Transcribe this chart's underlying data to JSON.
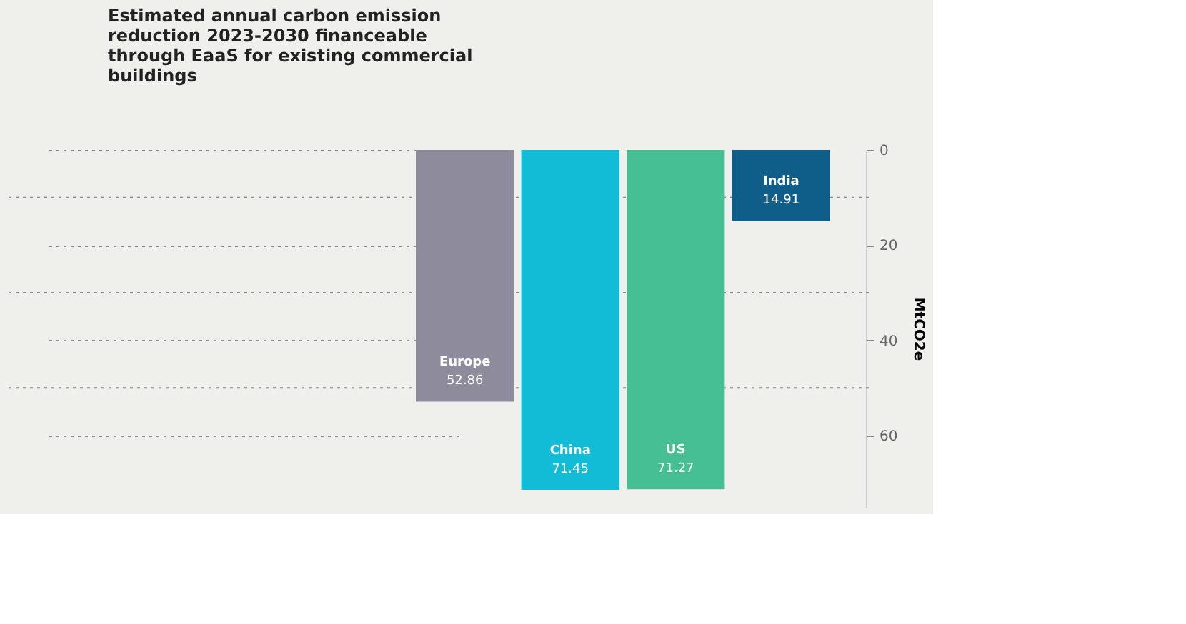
{
  "chart_data": {
    "type": "bar",
    "title": "Estimated annual carbon emission reduction 2023-2030 financeable through EaaS for existing commercial buildings",
    "categories": [
      "Europe",
      "China",
      "US",
      "India"
    ],
    "values": [
      52.86,
      71.45,
      71.27,
      14.91
    ],
    "colors": [
      "#8e8c9c",
      "#12bcd6",
      "#45bf93",
      "#0f5e8a"
    ],
    "ylabel": "MtCO2e",
    "ylim": [
      75,
      0
    ],
    "yticks": [
      0,
      {
        "value": 10,
        "label": null
      },
      20,
      {
        "value": 30,
        "label": null
      },
      40,
      {
        "value": 50,
        "label": null
      },
      60
    ],
    "grid": "y",
    "data_labels": true,
    "tick_labels": "y"
  }
}
